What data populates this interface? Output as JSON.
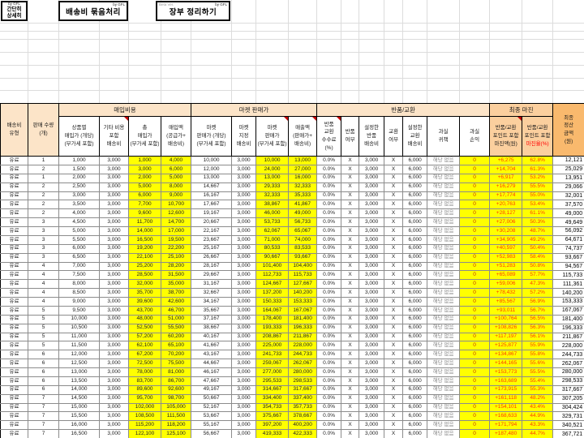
{
  "toolbar": {
    "btn_simple": {
      "by": "by GFL",
      "line1": "간단히",
      "line2": "상세히"
    },
    "btn_bundle": {
      "by": "by GFL",
      "label": "배송비 묶음처리"
    },
    "btn_ledger": {
      "beta": "Beta Ver.",
      "by": "by GFL",
      "label": "장부 정리하기"
    }
  },
  "table": {
    "groups": {
      "purchase": "매입비용",
      "market": "마켓 판매가",
      "returns": "반품/교환",
      "final_margin": "최종 마진"
    },
    "headers": {
      "ship_type": "배송비\n유형",
      "qty": "판매 수량\n(개)",
      "unit_buy": "상품별\n매입가 (개당)\n(부가세 포함)",
      "etc_ship": "기타 비용\n포함\n배송비",
      "total_buy": "총\n매입가\n(부가세 포함)",
      "buy_amt": "매입액\n(공급가+\n배송비)",
      "mkt_unit": "마켓\n판매가 (개당)\n(부가세 포함)",
      "mkt_ship": "마켓\n지정\n배송비",
      "mkt_price": "마켓\n판매가\n(부가세 포함)",
      "revenue": "매출액\n(판매가+\n배송비)",
      "fee": "반품\n교환\n수수료\n(%)",
      "ret_yn": "반품\n여부",
      "ret_ship": "설정한\n반품\n배송비",
      "exch_yn": "교환\n여부",
      "exch_ship": "설정한\n교환\n배송비",
      "fault": "과실\n귀책",
      "fault_pl": "과실\n손익",
      "margin_amt": "반품/교환\n포인트 포함\n마진액(원)",
      "margin_pct_prefix": "반품/교환\n포인트 포함\n",
      "margin_pct_red": "마진율(%)",
      "settle": "최종\n정산\n금액\n(원)"
    },
    "row_constants": {
      "ship_type": "유료",
      "etc_ship": "3,000",
      "mkt_ship": "3,000",
      "fee": "0.0%",
      "ret_yn": "X",
      "ret_ship": "3,000",
      "exch_yn": "X",
      "exch_ship": "6,000",
      "fault": "해당 없음",
      "fault_pl": "0"
    },
    "rows": [
      [
        "1",
        "1,000",
        "1,000",
        "4,000",
        "10,000",
        "10,000",
        "13,000",
        "+6,275",
        "62.8%",
        "12,121"
      ],
      [
        "2",
        "1,500",
        "3,000",
        "6,000",
        "12,000",
        "24,000",
        "27,000",
        "+14,704",
        "61.3%",
        "25,029"
      ],
      [
        "1",
        "2,000",
        "2,000",
        "5,000",
        "13,000",
        "13,000",
        "16,000",
        "+6,917",
        "53.2%",
        "13,951"
      ],
      [
        "2",
        "2,500",
        "5,000",
        "8,000",
        "14,667",
        "29,333",
        "32,333",
        "+16,279",
        "55.5%",
        "29,066"
      ],
      [
        "2",
        "3,000",
        "6,000",
        "9,000",
        "16,167",
        "32,333",
        "35,333",
        "+17,774",
        "55.0%",
        "32,001"
      ],
      [
        "2",
        "3,500",
        "7,700",
        "10,700",
        "17,667",
        "38,867",
        "41,867",
        "+20,763",
        "53.4%",
        "37,570"
      ],
      [
        "2",
        "4,000",
        "9,600",
        "12,600",
        "19,167",
        "46,000",
        "49,000",
        "+28,127",
        "61.1%",
        "49,000"
      ],
      [
        "3",
        "4,500",
        "11,700",
        "14,700",
        "20,667",
        "53,733",
        "56,733",
        "+27,006",
        "50.3%",
        "49,649"
      ],
      [
        "3",
        "5,000",
        "14,000",
        "17,000",
        "22,167",
        "62,067",
        "65,067",
        "+30,208",
        "48.7%",
        "56,092"
      ],
      [
        "3",
        "5,500",
        "16,500",
        "19,500",
        "23,667",
        "71,000",
        "74,000",
        "+34,905",
        "49.2%",
        "64,671"
      ],
      [
        "3",
        "6,000",
        "19,200",
        "22,200",
        "25,167",
        "80,533",
        "83,533",
        "+40,597",
        "50.4%",
        "74,737"
      ],
      [
        "3",
        "6,500",
        "22,100",
        "25,100",
        "26,667",
        "90,667",
        "93,667",
        "+52,983",
        "58.4%",
        "93,667"
      ],
      [
        "4",
        "7,000",
        "25,200",
        "28,200",
        "28,167",
        "101,400",
        "104,400",
        "+51,283",
        "50.8%",
        "94,567"
      ],
      [
        "4",
        "7,500",
        "28,500",
        "31,500",
        "29,667",
        "112,733",
        "115,733",
        "+65,089",
        "57.7%",
        "115,733"
      ],
      [
        "4",
        "8,000",
        "32,000",
        "35,000",
        "31,167",
        "124,667",
        "127,667",
        "+59,006",
        "47.3%",
        "111,361"
      ],
      [
        "4",
        "8,500",
        "35,700",
        "38,700",
        "32,667",
        "137,200",
        "140,200",
        "+78,432",
        "57.2%",
        "140,200"
      ],
      [
        "4",
        "9,000",
        "39,600",
        "42,600",
        "34,167",
        "150,333",
        "153,333",
        "+85,567",
        "56.9%",
        "153,333"
      ],
      [
        "5",
        "9,500",
        "43,700",
        "46,700",
        "35,667",
        "164,067",
        "167,067",
        "+93,011",
        "56.7%",
        "167,067"
      ],
      [
        "5",
        "10,000",
        "48,000",
        "51,000",
        "37,167",
        "178,400",
        "181,400",
        "+100,764",
        "56.5%",
        "181,400"
      ],
      [
        "5",
        "10,500",
        "52,500",
        "55,500",
        "38,667",
        "193,333",
        "196,333",
        "+108,826",
        "56.3%",
        "196,333"
      ],
      [
        "5",
        "11,000",
        "57,200",
        "60,200",
        "40,167",
        "208,867",
        "211,867",
        "+117,197",
        "56.1%",
        "211,867"
      ],
      [
        "5",
        "11,500",
        "62,100",
        "65,100",
        "41,667",
        "225,000",
        "228,000",
        "+125,877",
        "55.9%",
        "228,000"
      ],
      [
        "6",
        "12,000",
        "67,200",
        "70,200",
        "43,167",
        "241,733",
        "244,733",
        "+134,867",
        "55.8%",
        "244,733"
      ],
      [
        "6",
        "12,500",
        "72,500",
        "75,500",
        "44,667",
        "259,067",
        "262,067",
        "+144,165",
        "55.6%",
        "262,067"
      ],
      [
        "6",
        "13,000",
        "78,000",
        "81,000",
        "46,167",
        "277,000",
        "280,000",
        "+153,773",
        "55.5%",
        "280,000"
      ],
      [
        "6",
        "13,500",
        "83,700",
        "86,700",
        "47,667",
        "295,533",
        "298,533",
        "+163,689",
        "55.4%",
        "298,533"
      ],
      [
        "6",
        "14,000",
        "89,600",
        "92,600",
        "49,167",
        "314,667",
        "317,667",
        "+173,915",
        "55.3%",
        "317,667"
      ],
      [
        "7",
        "14,500",
        "95,700",
        "98,700",
        "50,667",
        "334,400",
        "337,400",
        "+161,118",
        "48.2%",
        "307,205"
      ],
      [
        "7",
        "15,000",
        "102,000",
        "105,000",
        "52,167",
        "354,733",
        "357,733",
        "+154,101",
        "43.4%",
        "304,424"
      ],
      [
        "7",
        "15,500",
        "108,500",
        "111,500",
        "53,667",
        "375,667",
        "378,667",
        "+168,633",
        "44.9%",
        "329,731"
      ],
      [
        "7",
        "16,000",
        "115,200",
        "118,200",
        "55,167",
        "397,200",
        "400,200",
        "+171,794",
        "43.3%",
        "340,521"
      ],
      [
        "7",
        "16,500",
        "122,100",
        "125,100",
        "56,667",
        "419,333",
        "422,333",
        "+187,480",
        "44.7%",
        "367,721"
      ]
    ]
  },
  "colors": {
    "header_tan": "#fce4c8",
    "header_orange": "#fbcf9e",
    "header_deep_orange": "#f9b96d",
    "highlight_yellow": "#ffff00",
    "margin_text": "#ff3c00",
    "red_label": "#ff0000",
    "comment_triangle": "#c00000"
  }
}
